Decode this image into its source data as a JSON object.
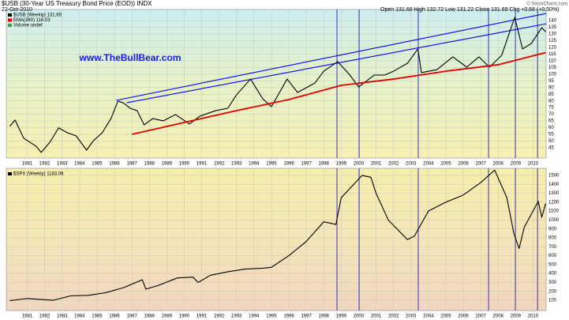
{
  "header": {
    "title": "$USB (30-Year US Treasury Bond Price (EOD)) INDX",
    "date": "22-Oct-2010",
    "quote": "Open 131.66  High 132.72  Low 131.22  Close 131.69  Chg +0.66 (+0.50%)",
    "credit": "© StockCharts.com"
  },
  "chart_data": [
    {
      "type": "line",
      "legend_note": "Volume undef",
      "annotation": "www.TheBullBear.com",
      "xlim": [
        1979.8,
        2010.75
      ],
      "xticks": [
        1981,
        1982,
        1983,
        1984,
        1985,
        1986,
        1987,
        1988,
        1989,
        1990,
        1991,
        1992,
        1993,
        1994,
        1995,
        1996,
        1997,
        1998,
        1999,
        2000,
        2001,
        2002,
        2003,
        2004,
        2005,
        2006,
        2007,
        2008,
        2009,
        2010
      ],
      "ylim": [
        37.3,
        148.3
      ],
      "yticks": [
        45,
        50,
        55,
        60,
        65,
        70,
        75,
        80,
        85,
        90,
        95,
        100,
        105,
        110,
        115,
        120,
        125,
        130,
        135,
        140
      ],
      "grid": true,
      "log": false,
      "series": [
        {
          "name": "$USB (Weekly) 131.69",
          "color": "#000000",
          "x": [
            1980.0,
            1980.3,
            1980.8,
            1981.5,
            1981.8,
            1982.3,
            1982.8,
            1983.3,
            1983.8,
            1984.4,
            1984.8,
            1985.3,
            1985.8,
            1986.2,
            1986.5,
            1986.9,
            1987.3,
            1987.7,
            1988.2,
            1988.8,
            1989.5,
            1990.3,
            1990.9,
            1991.8,
            1992.5,
            1993.0,
            1993.8,
            1994.5,
            1995.0,
            1995.9,
            1996.5,
            1997.5,
            1998.0,
            1998.8,
            1999.5,
            2000.0,
            2000.9,
            2001.5,
            2002.0,
            2002.8,
            2003.4,
            2003.6,
            2004.5,
            2005.4,
            2006.2,
            2006.9,
            2007.5,
            2008.2,
            2008.95,
            2009.4,
            2009.9,
            2010.5,
            2010.72
          ],
          "values": [
            61.0,
            65.7,
            52.1,
            46.2,
            41.5,
            49.1,
            59.8,
            56.2,
            53.9,
            43.2,
            50.3,
            56.2,
            66.8,
            79.8,
            78.6,
            74.5,
            72.7,
            62.1,
            66.8,
            65.1,
            69.8,
            62.7,
            68.6,
            72.7,
            74.5,
            84.5,
            96.3,
            81.6,
            75.7,
            96.3,
            86.3,
            93.4,
            102.2,
            109.3,
            99.3,
            90.4,
            99.3,
            99.3,
            102.2,
            108.1,
            118.8,
            101.1,
            103.4,
            112.9,
            105.2,
            112.9,
            105.2,
            114.0,
            142.4,
            118.8,
            122.9,
            134.7,
            131.69
          ]
        },
        {
          "name": "EMA(360) 116.03",
          "color": "#e00000",
          "x": [
            1987.0,
            1990.0,
            1993.0,
            1996.0,
            1999.0,
            2002.0,
            2005.0,
            2008.0,
            2010.72
          ],
          "values": [
            55.0,
            63.9,
            72.7,
            81.0,
            91.6,
            96.3,
            102.2,
            107.0,
            116.03
          ]
        }
      ],
      "trendlines": [
        {
          "x": [
            1986.1,
            2010.75
          ],
          "values": [
            80.4,
            145.3
          ],
          "color": "#0000ff"
        },
        {
          "x": [
            1986.7,
            2010.75
          ],
          "values": [
            78.6,
            137.6
          ],
          "color": "#0000ff"
        }
      ],
      "event_lines": [
        1998.76,
        2000.03,
        2003.42,
        2007.45,
        2008.99,
        2010.26
      ],
      "event_color": "#3333cc"
    },
    {
      "type": "line",
      "xlim": [
        1979.8,
        2010.75
      ],
      "xticks": [
        1981,
        1982,
        1983,
        1984,
        1985,
        1986,
        1987,
        1988,
        1989,
        1990,
        1991,
        1992,
        1993,
        1994,
        1995,
        1996,
        1997,
        1998,
        1999,
        2000,
        2001,
        2002,
        2003,
        2004,
        2005,
        2006,
        2007,
        2008,
        2009,
        2010
      ],
      "ylim": [
        -15,
        1580
      ],
      "yticks": [
        100,
        200,
        300,
        400,
        500,
        600,
        700,
        800,
        900,
        1000,
        1100,
        1200,
        1300,
        1400,
        1500
      ],
      "grid": true,
      "log": false,
      "series": [
        {
          "name": "$SPX (Weekly) 1183.08",
          "color": "#000000",
          "x": [
            1980.0,
            1981.0,
            1982.5,
            1983.5,
            1984.5,
            1985.5,
            1986.5,
            1987.6,
            1987.8,
            1988.5,
            1989.6,
            1990.5,
            1990.8,
            1991.5,
            1992.5,
            1993.5,
            1994.5,
            1995.0,
            1996.0,
            1997.0,
            1998.0,
            1998.7,
            1999.0,
            2000.2,
            2000.7,
            2001.0,
            2001.7,
            2002.8,
            2003.2,
            2004.0,
            2005.0,
            2006.0,
            2007.0,
            2007.8,
            2008.5,
            2008.9,
            2009.2,
            2009.5,
            2010.3,
            2010.5,
            2010.72
          ],
          "values": [
            95,
            120,
            100,
            150,
            155,
            185,
            240,
            330,
            225,
            265,
            350,
            360,
            300,
            380,
            420,
            450,
            460,
            470,
            600,
            760,
            980,
            950,
            1250,
            1500,
            1480,
            1300,
            1000,
            780,
            820,
            1100,
            1200,
            1280,
            1420,
            1560,
            1250,
            850,
            680,
            920,
            1210,
            1030,
            1183.08
          ]
        }
      ],
      "event_lines": [
        1998.76,
        2000.03,
        2003.42,
        2007.45,
        2008.99,
        2010.26
      ],
      "event_color": "#3333cc"
    }
  ]
}
